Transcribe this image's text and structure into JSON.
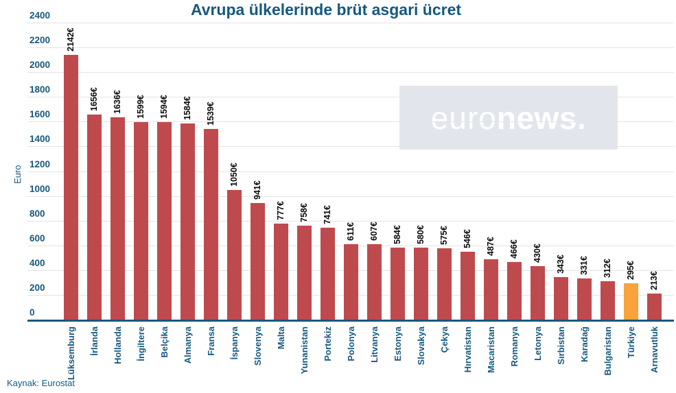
{
  "title": "Avrupa ülkelerinde brüt asgari ücret",
  "source": "Kaynak: Eurostat",
  "watermark": {
    "light": "euro",
    "bold": "news."
  },
  "y_axis": {
    "label": "Euro",
    "ticks": [
      0,
      200,
      400,
      600,
      800,
      1000,
      1200,
      1400,
      1600,
      1800,
      2000,
      2200,
      2400
    ]
  },
  "chart_data": {
    "type": "bar",
    "title": "Avrupa ülkelerinde brüt asgari ücret",
    "xlabel": "",
    "ylabel": "Euro",
    "ylim": [
      0,
      2400
    ],
    "grid": true,
    "legend": false,
    "unit": "€",
    "categories": [
      "Lüksemburg",
      "İrlanda",
      "Hollanda",
      "İngiltere",
      "Belçika",
      "Almanya",
      "Fransa",
      "İspanya",
      "Slovenya",
      "Malta",
      "Yunanistan",
      "Portekiz",
      "Polonya",
      "Litvanya",
      "Estonya",
      "Slovakya",
      "Çekya",
      "Hırvatistan",
      "Macaristan",
      "Romanya",
      "Letonya",
      "Sırbistan",
      "Karadağ",
      "Bulgaristan",
      "Türkiye",
      "Arnavutluk"
    ],
    "values": [
      2142,
      1656,
      1636,
      1599,
      1594,
      1584,
      1539,
      1050,
      941,
      777,
      758,
      741,
      611,
      607,
      584,
      580,
      575,
      546,
      487,
      466,
      430,
      343,
      331,
      312,
      295,
      213
    ],
    "value_labels": [
      "2142€",
      "1656€",
      "1636€",
      "1599€",
      "1594€",
      "1584€",
      "1539€",
      "1050€",
      "941€",
      "777€",
      "758€",
      "741€",
      "611€",
      "607€",
      "584€",
      "580€",
      "575€",
      "546€",
      "487€",
      "466€",
      "430€",
      "343€",
      "331€",
      "312€",
      "295€",
      "213€"
    ],
    "highlight_category": "Türkiye",
    "highlight_index": 24
  },
  "colors": {
    "accent": "#16587e",
    "bar": "#bf4a4d",
    "highlight": "#f8a33b",
    "value_label": "#0a0a0a",
    "grid": "#e3e3e3",
    "watermark_bg": "#e2e6ec",
    "watermark_text": "#ffffff",
    "background": "#ffffff"
  }
}
